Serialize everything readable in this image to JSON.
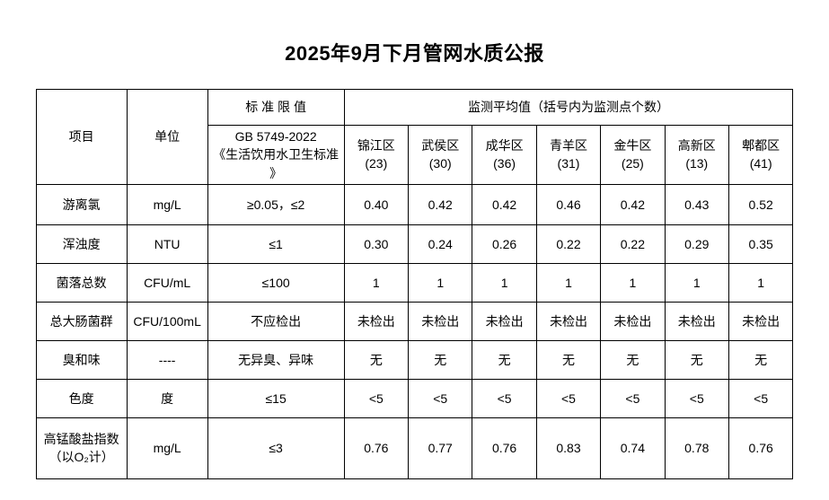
{
  "page": {
    "title": "2025年9月下月管网水质公报",
    "background_color": "#ffffff",
    "text_color": "#000000",
    "border_color": "#000000"
  },
  "table": {
    "header": {
      "item": "项目",
      "unit": "单位",
      "standard_limit": "标 准 限 值",
      "standard_source": "GB 5749-2022\n《生活饮用水卫生标准\n》",
      "monitoring": "监测平均值（括号内为监测点个数）",
      "districts": [
        {
          "name": "锦江区",
          "count": "(23)"
        },
        {
          "name": "武侯区",
          "count": "(30)"
        },
        {
          "name": "成华区",
          "count": "(36)"
        },
        {
          "name": "青羊区",
          "count": "(31)"
        },
        {
          "name": "金牛区",
          "count": "(25)"
        },
        {
          "name": "高新区",
          "count": "(13)"
        },
        {
          "name": "郫都区",
          "count": "(41)"
        }
      ]
    },
    "rows": [
      {
        "item": "游离氯",
        "unit": "mg/L",
        "standard": "≥0.05，≤2",
        "values": [
          "0.40",
          "0.42",
          "0.42",
          "0.46",
          "0.42",
          "0.43",
          "0.52"
        ]
      },
      {
        "item": "浑浊度",
        "unit": "NTU",
        "standard": "≤1",
        "values": [
          "0.30",
          "0.24",
          "0.26",
          "0.22",
          "0.22",
          "0.29",
          "0.35"
        ]
      },
      {
        "item": "菌落总数",
        "unit": "CFU/mL",
        "standard": "≤100",
        "values": [
          "1",
          "1",
          "1",
          "1",
          "1",
          "1",
          "1"
        ]
      },
      {
        "item": "总大肠菌群",
        "unit": "CFU/100mL",
        "standard": "不应检出",
        "values": [
          "未检出",
          "未检出",
          "未检出",
          "未检出",
          "未检出",
          "未检出",
          "未检出"
        ]
      },
      {
        "item": "臭和味",
        "unit": "----",
        "standard": "无异臭、异味",
        "values": [
          "无",
          "无",
          "无",
          "无",
          "无",
          "无",
          "无"
        ]
      },
      {
        "item": "色度",
        "unit": "度",
        "standard": "≤15",
        "values": [
          "<5",
          "<5",
          "<5",
          "<5",
          "<5",
          "<5",
          "<5"
        ]
      },
      {
        "item": "高锰酸盐指数\n（以O₂计）",
        "unit": "mg/L",
        "standard": "≤3",
        "values": [
          "0.76",
          "0.77",
          "0.76",
          "0.83",
          "0.74",
          "0.78",
          "0.76"
        ]
      }
    ]
  }
}
